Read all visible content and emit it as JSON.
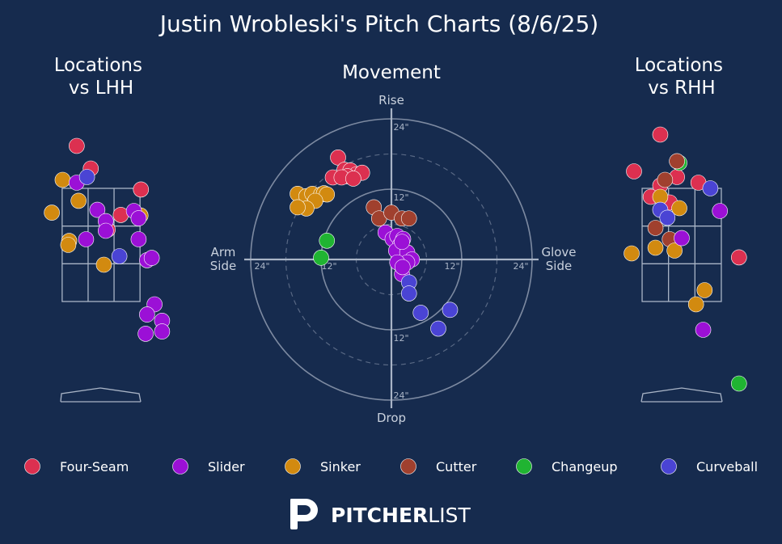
{
  "chart_data": {
    "type": "scatter",
    "title": "Justin Wrobleski's Pitch Charts (8/6/25)",
    "colors": {
      "background": "#162b4e",
      "Four-Seam": "#dc3050",
      "Slider": "#9b10d6",
      "Sinker": "#d28a10",
      "Cutter": "#a0402e",
      "Changeup": "#20b432",
      "Curveball": "#4a44d4",
      "lines": "#a9b4c6"
    },
    "legend": {
      "placement": "bottom",
      "items": [
        "Four-Seam",
        "Slider",
        "Sinker",
        "Cutter",
        "Changeup",
        "Curveball"
      ]
    },
    "brand": {
      "bold": "PITCHER",
      "light": "LIST"
    },
    "panels": [
      {
        "id": "lhh",
        "title": "Locations\nvs LHH",
        "units": "feet from plate center (catcher view)",
        "xlim": [
          -2.8,
          2.8
        ],
        "ylim": [
          -0.2,
          5.0
        ],
        "strike_zone": {
          "x": [
            -0.83,
            0.83
          ],
          "z": [
            1.5,
            3.5
          ]
        },
        "points": [
          {
            "pitch": "Four-Seam",
            "x": -0.52,
            "z": 4.25
          },
          {
            "pitch": "Four-Seam",
            "x": -0.22,
            "z": 3.85
          },
          {
            "pitch": "Four-Seam",
            "x": 0.85,
            "z": 3.48
          },
          {
            "pitch": "Four-Seam",
            "x": 0.42,
            "z": 3.03
          },
          {
            "pitch": "Four-Seam",
            "x": 0.14,
            "z": 2.77
          },
          {
            "pitch": "Sinker",
            "x": -0.82,
            "z": 3.65
          },
          {
            "pitch": "Sinker",
            "x": -0.48,
            "z": 3.28
          },
          {
            "pitch": "Sinker",
            "x": -1.05,
            "z": 3.07
          },
          {
            "pitch": "Sinker",
            "x": 0.84,
            "z": 3.02
          },
          {
            "pitch": "Sinker",
            "x": -0.68,
            "z": 2.57
          },
          {
            "pitch": "Sinker",
            "x": -0.7,
            "z": 2.5
          },
          {
            "pitch": "Sinker",
            "x": 0.06,
            "z": 2.15
          },
          {
            "pitch": "Slider",
            "x": -0.52,
            "z": 3.6
          },
          {
            "pitch": "Slider",
            "x": -0.08,
            "z": 3.12
          },
          {
            "pitch": "Slider",
            "x": 0.7,
            "z": 3.1
          },
          {
            "pitch": "Slider",
            "x": 0.8,
            "z": 2.97
          },
          {
            "pitch": "Slider",
            "x": 0.1,
            "z": 2.92
          },
          {
            "pitch": "Slider",
            "x": 0.1,
            "z": 2.75
          },
          {
            "pitch": "Slider",
            "x": -0.32,
            "z": 2.6
          },
          {
            "pitch": "Slider",
            "x": 0.8,
            "z": 2.6
          },
          {
            "pitch": "Slider",
            "x": 0.98,
            "z": 2.23
          },
          {
            "pitch": "Slider",
            "x": 1.08,
            "z": 2.27
          },
          {
            "pitch": "Slider",
            "x": 1.14,
            "z": 1.45
          },
          {
            "pitch": "Slider",
            "x": 0.98,
            "z": 1.27
          },
          {
            "pitch": "Slider",
            "x": 1.3,
            "z": 1.16
          },
          {
            "pitch": "Slider",
            "x": 0.95,
            "z": 0.93
          },
          {
            "pitch": "Slider",
            "x": 1.3,
            "z": 0.97
          },
          {
            "pitch": "Curveball",
            "x": -0.3,
            "z": 3.7
          },
          {
            "pitch": "Curveball",
            "x": 0.39,
            "z": 2.3
          }
        ]
      },
      {
        "id": "movement",
        "title": "Movement",
        "units": "inches",
        "xlim": [
          -24,
          24
        ],
        "ylim": [
          -24,
          24
        ],
        "ring_labels": [
          "12\"",
          "24\""
        ],
        "axis_labels": {
          "top": "Rise",
          "bottom": "Drop",
          "left": "Arm\nSide",
          "right": "Glove\nSide"
        },
        "points": [
          {
            "pitch": "Four-Seam",
            "x": -9.1,
            "y": 17.4
          },
          {
            "pitch": "Four-Seam",
            "x": -8.0,
            "y": 15.3
          },
          {
            "pitch": "Four-Seam",
            "x": -7.0,
            "y": 15.2
          },
          {
            "pitch": "Four-Seam",
            "x": -6.0,
            "y": 14.5
          },
          {
            "pitch": "Four-Seam",
            "x": -5.0,
            "y": 14.8
          },
          {
            "pitch": "Four-Seam",
            "x": -7.5,
            "y": 14.2
          },
          {
            "pitch": "Four-Seam",
            "x": -10.0,
            "y": 14.0
          },
          {
            "pitch": "Four-Seam",
            "x": -8.5,
            "y": 14.0
          },
          {
            "pitch": "Four-Seam",
            "x": -6.5,
            "y": 13.8
          },
          {
            "pitch": "Sinker",
            "x": -16.0,
            "y": 11.2
          },
          {
            "pitch": "Sinker",
            "x": -14.5,
            "y": 10.8
          },
          {
            "pitch": "Sinker",
            "x": -13.5,
            "y": 11.2
          },
          {
            "pitch": "Sinker",
            "x": -12.0,
            "y": 11.1
          },
          {
            "pitch": "Sinker",
            "x": -11.5,
            "y": 11.3
          },
          {
            "pitch": "Sinker",
            "x": -11.0,
            "y": 11.1
          },
          {
            "pitch": "Sinker",
            "x": -13.0,
            "y": 10.0
          },
          {
            "pitch": "Sinker",
            "x": -14.5,
            "y": 8.7
          },
          {
            "pitch": "Sinker",
            "x": -16.0,
            "y": 8.9
          },
          {
            "pitch": "Cutter",
            "x": -3.0,
            "y": 8.9
          },
          {
            "pitch": "Cutter",
            "x": -2.1,
            "y": 7.0
          },
          {
            "pitch": "Cutter",
            "x": 0.0,
            "y": 8.0
          },
          {
            "pitch": "Cutter",
            "x": 1.8,
            "y": 7.0
          },
          {
            "pitch": "Cutter",
            "x": 3.0,
            "y": 7.0
          },
          {
            "pitch": "Changeup",
            "x": -11.0,
            "y": 3.2
          },
          {
            "pitch": "Changeup",
            "x": -12.0,
            "y": 0.3
          },
          {
            "pitch": "Slider",
            "x": -1.0,
            "y": 4.6
          },
          {
            "pitch": "Slider",
            "x": 0.2,
            "y": 3.5
          },
          {
            "pitch": "Slider",
            "x": 1.0,
            "y": 4.0
          },
          {
            "pitch": "Slider",
            "x": 2.0,
            "y": 3.5
          },
          {
            "pitch": "Slider",
            "x": 1.5,
            "y": 2.5
          },
          {
            "pitch": "Slider",
            "x": 0.8,
            "y": 1.5
          },
          {
            "pitch": "Slider",
            "x": 2.7,
            "y": 1.2
          },
          {
            "pitch": "Slider",
            "x": 3.5,
            "y": 0.0
          },
          {
            "pitch": "Slider",
            "x": 2.7,
            "y": -0.5
          },
          {
            "pitch": "Slider",
            "x": 1.0,
            "y": -0.5
          },
          {
            "pitch": "Slider",
            "x": 1.8,
            "y": 3.0
          },
          {
            "pitch": "Slider",
            "x": 1.8,
            "y": -2.5
          },
          {
            "pitch": "Slider",
            "x": 1.9,
            "y": -1.3
          },
          {
            "pitch": "Curveball",
            "x": 3.0,
            "y": -3.9
          },
          {
            "pitch": "Curveball",
            "x": 3.0,
            "y": -5.8
          },
          {
            "pitch": "Curveball",
            "x": 5.0,
            "y": -9.1
          },
          {
            "pitch": "Curveball",
            "x": 10.0,
            "y": -8.6
          },
          {
            "pitch": "Curveball",
            "x": 8.0,
            "y": -11.8
          }
        ]
      },
      {
        "id": "rhh",
        "title": "Locations\nvs RHH",
        "units": "feet from plate center (catcher view)",
        "xlim": [
          -2.8,
          2.8
        ],
        "ylim": [
          -0.2,
          5.0
        ],
        "strike_zone": {
          "x": [
            -0.83,
            0.83
          ],
          "z": [
            1.5,
            3.5
          ]
        },
        "points": [
          {
            "pitch": "Four-Seam",
            "x": -0.45,
            "z": 4.45
          },
          {
            "pitch": "Four-Seam",
            "x": -1.0,
            "y": null,
            "z": 3.8
          },
          {
            "pitch": "Four-Seam",
            "x": -0.1,
            "z": 3.7
          },
          {
            "pitch": "Four-Seam",
            "x": 0.35,
            "z": 3.6
          },
          {
            "pitch": "Four-Seam",
            "x": -0.45,
            "z": 3.55
          },
          {
            "pitch": "Four-Seam",
            "x": -0.65,
            "z": 3.35
          },
          {
            "pitch": "Four-Seam",
            "x": -0.25,
            "z": 3.25
          },
          {
            "pitch": "Four-Seam",
            "x": 1.2,
            "z": 2.28
          },
          {
            "pitch": "Changeup",
            "x": -0.05,
            "z": 3.95
          },
          {
            "pitch": "Changeup",
            "x": 1.2,
            "z": 0.05
          },
          {
            "pitch": "Cutter",
            "x": -0.1,
            "z": 3.98
          },
          {
            "pitch": "Cutter",
            "x": -0.35,
            "z": 3.65
          },
          {
            "pitch": "Cutter",
            "x": -0.55,
            "z": 2.8
          },
          {
            "pitch": "Cutter",
            "x": -0.25,
            "z": 2.6
          },
          {
            "pitch": "Sinker",
            "x": -0.45,
            "z": 3.35
          },
          {
            "pitch": "Sinker",
            "x": -0.05,
            "z": 3.15
          },
          {
            "pitch": "Sinker",
            "x": -1.05,
            "z": 2.35
          },
          {
            "pitch": "Sinker",
            "x": -0.55,
            "z": 2.45
          },
          {
            "pitch": "Sinker",
            "x": -0.15,
            "z": 2.4
          },
          {
            "pitch": "Sinker",
            "x": 0.48,
            "z": 1.7
          },
          {
            "pitch": "Sinker",
            "x": 0.3,
            "z": 1.45
          },
          {
            "pitch": "Curveball",
            "x": 0.6,
            "z": 3.5
          },
          {
            "pitch": "Curveball",
            "x": -0.45,
            "z": 3.12
          },
          {
            "pitch": "Curveball",
            "x": -0.3,
            "z": 2.98
          },
          {
            "pitch": "Slider",
            "x": 0.8,
            "z": 3.1
          },
          {
            "pitch": "Slider",
            "x": 0.0,
            "z": 2.62
          },
          {
            "pitch": "Slider",
            "x": 0.45,
            "z": 1.0
          }
        ]
      }
    ]
  }
}
